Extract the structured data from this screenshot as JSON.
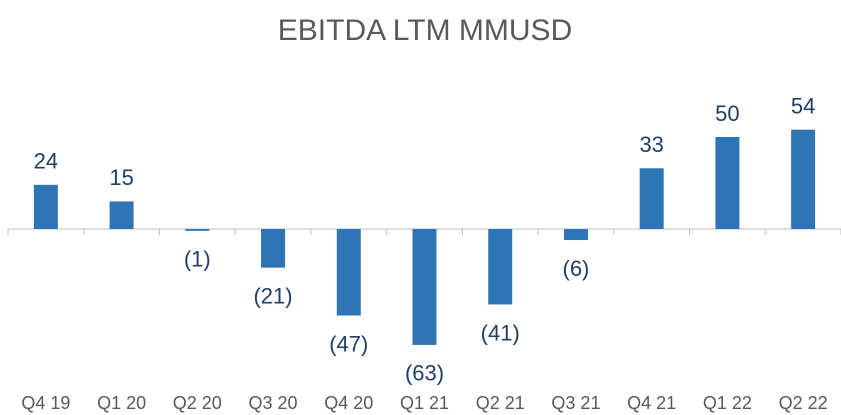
{
  "chart_data": {
    "type": "bar",
    "title": "EBITDA LTM MMUSD",
    "categories": [
      "Q4 19",
      "Q1 20",
      "Q2 20",
      "Q3 20",
      "Q4 20",
      "Q1 21",
      "Q2 21",
      "Q3 21",
      "Q4 21",
      "Q1 22",
      "Q2 22"
    ],
    "values": [
      24,
      15,
      -1,
      -21,
      -47,
      -63,
      -41,
      -6,
      33,
      50,
      54
    ],
    "value_labels": [
      "24",
      "15",
      "(1)",
      "(21)",
      "(47)",
      "(63)",
      "(41)",
      "(6)",
      "33",
      "50",
      "54"
    ],
    "color": "#2e75b6"
  }
}
